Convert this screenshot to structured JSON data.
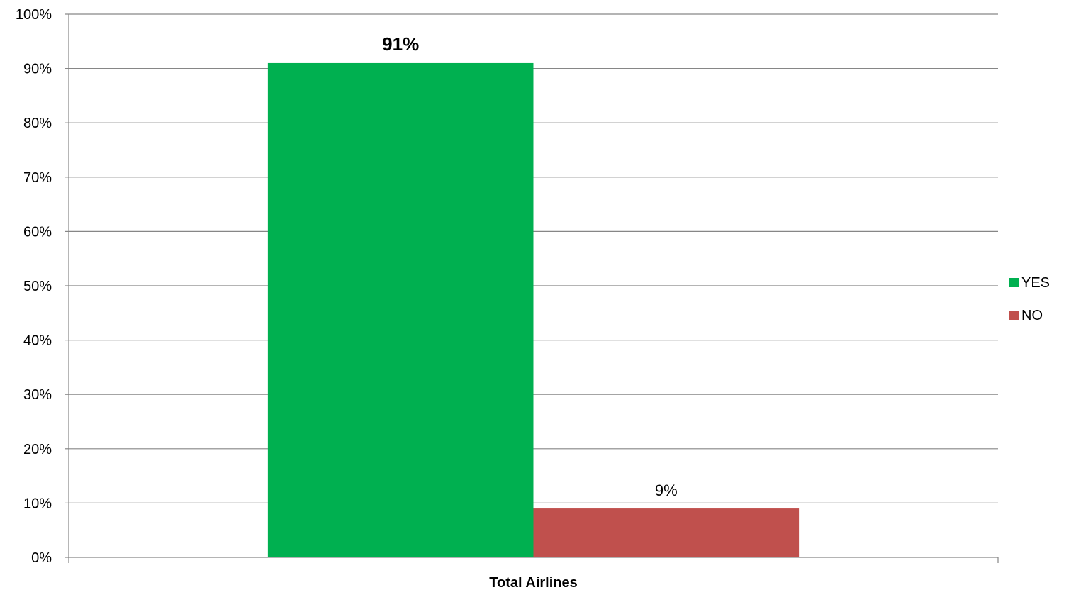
{
  "chart_data": {
    "type": "bar",
    "categories": [
      "Total Airlines"
    ],
    "series": [
      {
        "name": "YES",
        "values": [
          91
        ],
        "label": "91%",
        "color": "#00B050",
        "label_bold": true
      },
      {
        "name": "NO",
        "values": [
          9
        ],
        "label": "9%",
        "color": "#C0504D",
        "label_bold": false
      }
    ],
    "ylim": [
      0,
      100
    ],
    "yticks": [
      0,
      10,
      20,
      30,
      40,
      50,
      60,
      70,
      80,
      90,
      100
    ],
    "ytick_labels": [
      "0%",
      "10%",
      "20%",
      "30%",
      "40%",
      "50%",
      "60%",
      "70%",
      "80%",
      "90%",
      "100%"
    ],
    "grid": true,
    "legend_position": "right",
    "gridline_color": "#868686",
    "axis_color": "#868686"
  }
}
